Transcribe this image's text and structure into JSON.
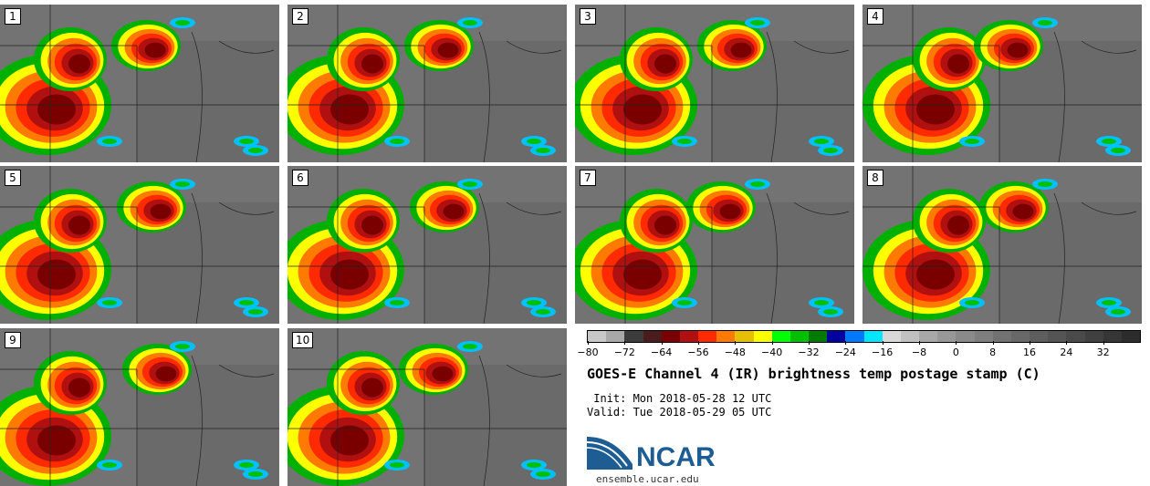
{
  "panels": [
    {
      "label": "1"
    },
    {
      "label": "2"
    },
    {
      "label": "3"
    },
    {
      "label": "4"
    },
    {
      "label": "5"
    },
    {
      "label": "6"
    },
    {
      "label": "7"
    },
    {
      "label": "8"
    },
    {
      "label": "9"
    },
    {
      "label": "10"
    }
  ],
  "colorbar": {
    "min": -80,
    "max": 40,
    "step": 4,
    "tick_labels": [
      "−80",
      "−72",
      "−64",
      "−56",
      "−48",
      "−40",
      "−32",
      "−24",
      "−16",
      "−8",
      "0",
      "8",
      "16",
      "24",
      "32"
    ],
    "colors": [
      "#c8c8c8",
      "#a9a9a9",
      "#3c3c3c",
      "#4a1c1c",
      "#7a0000",
      "#b01010",
      "#ff2a00",
      "#ff7a00",
      "#e6c000",
      "#ffff00",
      "#00ff00",
      "#00c000",
      "#007a00",
      "#0000a0",
      "#0078ff",
      "#00e6ff",
      "#d8d8d8",
      "#c0c0c0",
      "#a8a8a8",
      "#989898",
      "#8a8a8a",
      "#7e7e7e",
      "#727272",
      "#686868",
      "#5e5e5e",
      "#545454",
      "#4a4a4a",
      "#404040",
      "#363636",
      "#2c2c2c"
    ]
  },
  "title": "GOES-E Channel 4 (IR) brightness temp postage stamp (C)",
  "init_line": " Init: Mon 2018-05-28 12 UTC",
  "valid_line": "Valid: Tue 2018-05-29 05 UTC",
  "logo": {
    "text": "NCAR",
    "url": "ensemble.ucar.edu",
    "color": "#1d5d93"
  }
}
